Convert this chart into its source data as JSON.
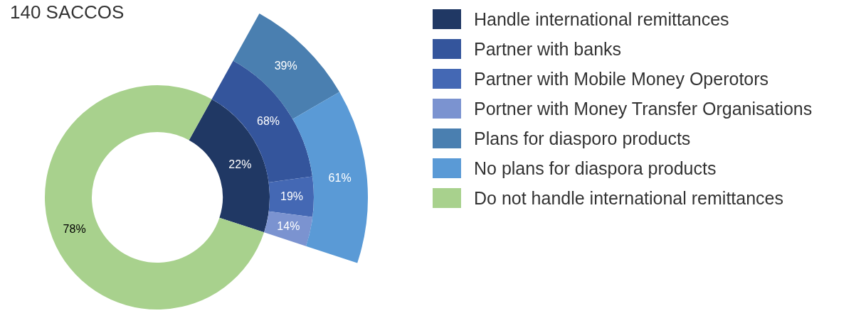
{
  "chart_data": [
    {
      "type": "donut",
      "title": "140 SACCOS",
      "categories": [
        "Handle international remittances",
        "Do not handle international remittances"
      ],
      "values": [
        22,
        78
      ],
      "colors": [
        "#203864",
        "#a8d18d"
      ],
      "value_labels": [
        "22%",
        "78%"
      ],
      "legend": "right"
    },
    {
      "type": "donut",
      "categories": [
        "Partner with banks",
        "Partner with Mobile Money Operotors",
        "Portner with Money Transfer Organisations"
      ],
      "values": [
        68,
        19,
        14
      ],
      "colors": [
        "#34559c",
        "#4468b4",
        "#7b93d0"
      ],
      "value_labels": [
        "68%",
        "19%",
        "14%"
      ],
      "legend": "right"
    },
    {
      "type": "donut",
      "categories": [
        "Plans for diasporo products",
        "No plans for diaspora products"
      ],
      "values": [
        39,
        61
      ],
      "colors": [
        "#4a7fb0",
        "#5a9ad6"
      ],
      "value_labels": [
        "39%",
        "61%"
      ],
      "legend": "right"
    }
  ]
}
